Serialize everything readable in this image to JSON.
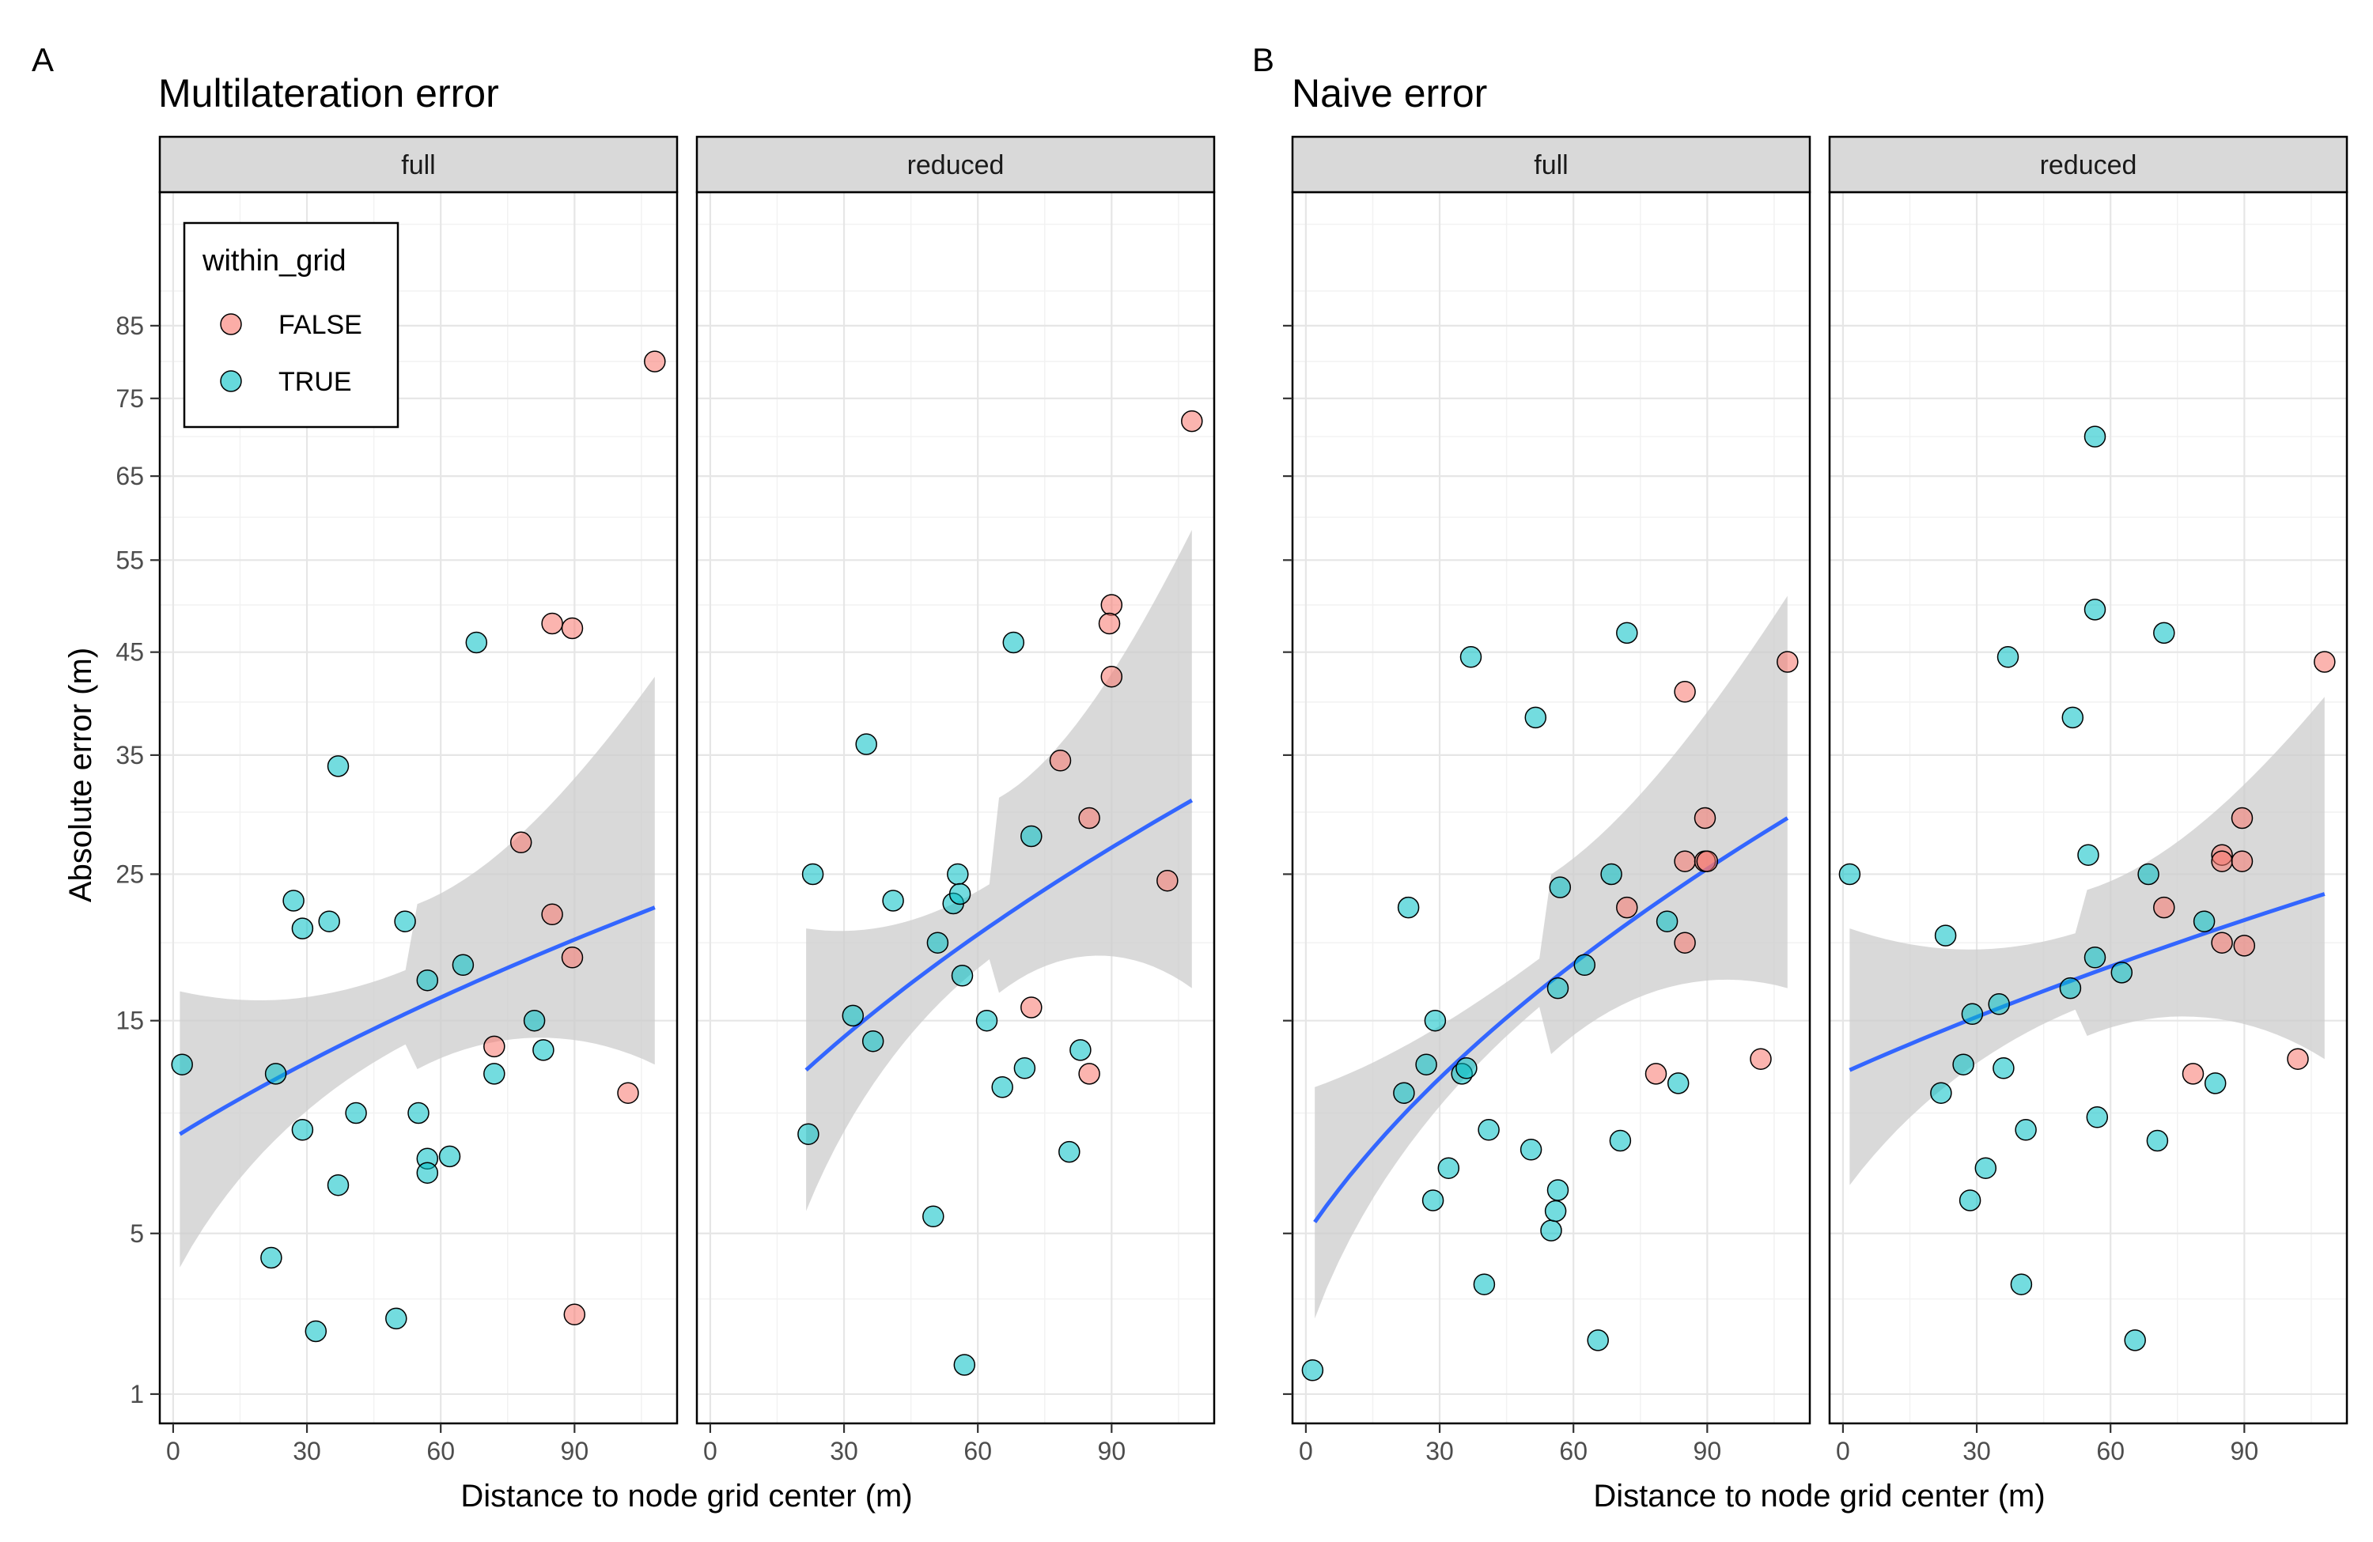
{
  "figure": {
    "panels": [
      {
        "tag": "A",
        "title": "Multilateration error",
        "xlabel": "Distance to node grid center (m)"
      },
      {
        "tag": "B",
        "title": "Naive error",
        "xlabel": "Distance to node grid center (m)"
      }
    ],
    "ylabel": "Absolute error (m)",
    "legend": {
      "title": "within_grid",
      "entries": [
        "FALSE",
        "TRUE"
      ],
      "placement": "top-left"
    }
  },
  "colors": {
    "FALSE": "#F8766D",
    "TRUE": "#00BFC4",
    "smooth": "#3366FF",
    "band": "#cccccc",
    "strip": "#d9d9d9"
  },
  "chart_data": [
    {
      "type": "scatter",
      "title": "Multilateration error",
      "facet": "full",
      "xlabel": "Distance to node grid center (m)",
      "ylabel": "Absolute error (m)",
      "x_ticks": [
        "0",
        "30",
        "60",
        "90"
      ],
      "x_range": [
        -3,
        113
      ],
      "y_scale": "sqrt",
      "y_ticks": [
        "1",
        "5",
        "15",
        "25",
        "35",
        "45",
        "55",
        "65",
        "75",
        "85"
      ],
      "y_range": [
        0.6,
        105
      ],
      "grid": true,
      "series": [
        {
          "name": "FALSE",
          "points": [
            [
              108,
              80
            ],
            [
              85,
              48
            ],
            [
              89.5,
              47.5
            ],
            [
              78,
              27.5
            ],
            [
              85,
              22
            ],
            [
              89.5,
              19
            ],
            [
              72,
              13.5
            ],
            [
              102,
              11
            ],
            [
              90,
              2.6
            ]
          ]
        },
        {
          "name": "TRUE",
          "points": [
            [
              2,
              12.5
            ],
            [
              23,
              12
            ],
            [
              27,
              23
            ],
            [
              29,
              21
            ],
            [
              35,
              21.5
            ],
            [
              37,
              34
            ],
            [
              29,
              9.2
            ],
            [
              41,
              10
            ],
            [
              37,
              6.8
            ],
            [
              22,
              4.2
            ],
            [
              32,
              2.2
            ],
            [
              50,
              2.5
            ],
            [
              52,
              21.5
            ],
            [
              55,
              10
            ],
            [
              57,
              17.5
            ],
            [
              57,
              7.9
            ],
            [
              57,
              7.3
            ],
            [
              62,
              8
            ],
            [
              65,
              18.5
            ],
            [
              68,
              46
            ],
            [
              72,
              12
            ],
            [
              81,
              15
            ],
            [
              83,
              13.3
            ]
          ]
        }
      ],
      "smooth": {
        "x": [
          1.5,
          108
        ],
        "y": [
          9,
          22.5
        ],
        "band_lo": [
          3.9,
          12.5
        ],
        "band_hi": [
          16.8,
          42.5
        ]
      }
    },
    {
      "type": "scatter",
      "title": "Multilateration error",
      "facet": "reduced",
      "xlabel": "Distance to node grid center (m)",
      "ylabel": "Absolute error (m)",
      "x_ticks": [
        "0",
        "30",
        "60",
        "90"
      ],
      "x_range": [
        -3,
        113
      ],
      "y_scale": "sqrt",
      "y_range": [
        0.6,
        105
      ],
      "grid": true,
      "series": [
        {
          "name": "FALSE",
          "points": [
            [
              108,
              72
            ],
            [
              90,
              50
            ],
            [
              89.5,
              48
            ],
            [
              90,
              42.5
            ],
            [
              78.5,
              34.5
            ],
            [
              85,
              29.5
            ],
            [
              102.5,
              24.5
            ],
            [
              72,
              15.8
            ],
            [
              85,
              12
            ]
          ]
        },
        {
          "name": "TRUE",
          "points": [
            [
              22,
              9
            ],
            [
              23,
              25
            ],
            [
              32,
              15.3
            ],
            [
              35,
              36
            ],
            [
              36.5,
              13.8
            ],
            [
              41,
              23
            ],
            [
              50,
              5.6
            ],
            [
              51,
              20
            ],
            [
              54.5,
              22.8
            ],
            [
              55.5,
              25
            ],
            [
              56,
              23.5
            ],
            [
              56.5,
              17.8
            ],
            [
              57,
              1.5
            ],
            [
              62,
              15
            ],
            [
              65.5,
              11.3
            ],
            [
              68,
              46
            ],
            [
              70.5,
              12.3
            ],
            [
              72,
              28
            ],
            [
              80.5,
              8.2
            ],
            [
              83,
              13.3
            ]
          ]
        }
      ],
      "smooth": {
        "x": [
          21.5,
          108
        ],
        "y": [
          12.2,
          31
        ],
        "band_lo": [
          5.8,
          17
        ],
        "band_hi": [
          21,
          58.5
        ]
      }
    },
    {
      "type": "scatter",
      "title": "Naive error",
      "facet": "full",
      "xlabel": "Distance to node grid center (m)",
      "ylabel": "Absolute error (m)",
      "x_ticks": [
        "0",
        "30",
        "60",
        "90"
      ],
      "x_range": [
        -3,
        113
      ],
      "y_scale": "sqrt",
      "y_range": [
        0.6,
        105
      ],
      "grid": true,
      "series": [
        {
          "name": "FALSE",
          "points": [
            [
              108,
              44
            ],
            [
              85,
              41
            ],
            [
              89.5,
              29.5
            ],
            [
              85,
              26
            ],
            [
              89.5,
              26
            ],
            [
              90,
              26
            ],
            [
              72,
              22.5
            ],
            [
              85,
              20
            ],
            [
              78.5,
              12
            ],
            [
              102,
              12.8
            ]
          ]
        },
        {
          "name": "TRUE",
          "points": [
            [
              1.5,
              1.4
            ],
            [
              22,
              11
            ],
            [
              23,
              22.5
            ],
            [
              27,
              12.5
            ],
            [
              29,
              15
            ],
            [
              28.5,
              6.2
            ],
            [
              32,
              7.5
            ],
            [
              35,
              12
            ],
            [
              36,
              12.3
            ],
            [
              37,
              44.5
            ],
            [
              40,
              3.4
            ],
            [
              41,
              9.2
            ],
            [
              50.5,
              8.3
            ],
            [
              51.5,
              38.5
            ],
            [
              55,
              5.1
            ],
            [
              56,
              5.8
            ],
            [
              56.5,
              6.6
            ],
            [
              56.5,
              17
            ],
            [
              57,
              24
            ],
            [
              62.5,
              18.5
            ],
            [
              65.5,
              2
            ],
            [
              68.5,
              25
            ],
            [
              70.5,
              8.7
            ],
            [
              72,
              47
            ],
            [
              81,
              21.5
            ],
            [
              83.5,
              11.5
            ]
          ]
        }
      ],
      "smooth": {
        "x": [
          2,
          108
        ],
        "y": [
          5.4,
          29.5
        ],
        "band_lo": [
          2.5,
          17
        ],
        "band_hi": [
          11.3,
          51
        ]
      }
    },
    {
      "type": "scatter",
      "title": "Naive error",
      "facet": "reduced",
      "xlabel": "Distance to node grid center (m)",
      "ylabel": "Absolute error (m)",
      "x_ticks": [
        "0",
        "30",
        "60",
        "90"
      ],
      "x_range": [
        -3,
        113
      ],
      "y_scale": "sqrt",
      "y_range": [
        0.6,
        105
      ],
      "grid": true,
      "series": [
        {
          "name": "FALSE",
          "points": [
            [
              108,
              44
            ],
            [
              89.5,
              29.5
            ],
            [
              85,
              26.5
            ],
            [
              85,
              26
            ],
            [
              89.5,
              26
            ],
            [
              72,
              22.5
            ],
            [
              85,
              20
            ],
            [
              90,
              19.8
            ],
            [
              78.5,
              12
            ],
            [
              102,
              12.8
            ]
          ]
        },
        {
          "name": "TRUE",
          "points": [
            [
              1.5,
              25
            ],
            [
              22,
              11
            ],
            [
              23,
              20.5
            ],
            [
              27,
              12.5
            ],
            [
              29,
              15.4
            ],
            [
              28.5,
              6.2
            ],
            [
              32,
              7.5
            ],
            [
              35,
              16
            ],
            [
              36,
              12.3
            ],
            [
              37,
              44.5
            ],
            [
              40,
              3.4
            ],
            [
              41,
              9.2
            ],
            [
              51,
              17
            ],
            [
              51.5,
              38.5
            ],
            [
              55,
              26.5
            ],
            [
              56.5,
              70
            ],
            [
              56.5,
              49.5
            ],
            [
              56.5,
              19
            ],
            [
              57,
              9.8
            ],
            [
              62.5,
              18
            ],
            [
              65.5,
              2
            ],
            [
              68.5,
              25
            ],
            [
              70.5,
              8.7
            ],
            [
              72,
              47
            ],
            [
              81,
              21.5
            ],
            [
              83.5,
              11.5
            ]
          ]
        }
      ],
      "smooth": {
        "x": [
          1.5,
          108
        ],
        "y": [
          12.2,
          23.5
        ],
        "band_lo": [
          6.8,
          12.8
        ],
        "band_hi": [
          21,
          40.5
        ]
      }
    }
  ]
}
